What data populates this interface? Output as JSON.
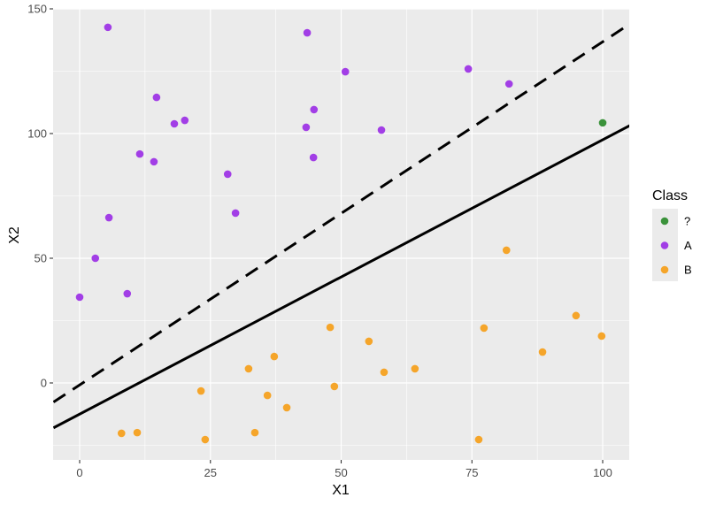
{
  "chart_data": {
    "type": "scatter",
    "title": "",
    "xlabel": "X1",
    "ylabel": "X2",
    "xlim": [
      -5,
      105
    ],
    "ylim": [
      -31,
      150
    ],
    "x_ticks": [
      0,
      25,
      50,
      75,
      100
    ],
    "y_ticks": [
      0,
      50,
      100,
      150
    ],
    "grid": true,
    "legend": {
      "title": "Class",
      "position": "right",
      "entries": [
        {
          "label": "?",
          "color": "#3a923a"
        },
        {
          "label": "A",
          "color": "#a23ee6"
        },
        {
          "label": "B",
          "color": "#f5a52a"
        }
      ]
    },
    "series": [
      {
        "name": "?",
        "color": "#3a923a",
        "points": [
          [
            100,
            104.3
          ]
        ]
      },
      {
        "name": "A",
        "color": "#a23ee6",
        "points": [
          [
            0,
            34.4
          ],
          [
            3,
            50
          ],
          [
            5.4,
            142.6
          ],
          [
            5.6,
            66.3
          ],
          [
            9.1,
            35.8
          ],
          [
            11.5,
            91.8
          ],
          [
            14.2,
            88.7
          ],
          [
            14.7,
            114.5
          ],
          [
            18.1,
            103.9
          ],
          [
            20.1,
            105.3
          ],
          [
            28.3,
            83.7
          ],
          [
            29.8,
            68.1
          ],
          [
            43.3,
            102.5
          ],
          [
            43.5,
            140.4
          ],
          [
            44.7,
            90.4
          ],
          [
            44.8,
            109.6
          ],
          [
            50.8,
            124.8
          ],
          [
            57.7,
            101.4
          ],
          [
            74.3,
            125.9
          ],
          [
            82.1,
            119.9
          ]
        ]
      },
      {
        "name": "B",
        "color": "#f5a52a",
        "points": [
          [
            8,
            -20.2
          ],
          [
            11,
            -19.9
          ],
          [
            23.2,
            -3.2
          ],
          [
            24,
            -22.7
          ],
          [
            32.3,
            5.7
          ],
          [
            33.5,
            -19.9
          ],
          [
            35.9,
            -5
          ],
          [
            37.2,
            10.6
          ],
          [
            39.6,
            -9.9
          ],
          [
            47.9,
            22.3
          ],
          [
            48.7,
            -1.4
          ],
          [
            55.3,
            16.7
          ],
          [
            58.2,
            4.3
          ],
          [
            64.1,
            5.7
          ],
          [
            76.3,
            -22.7
          ],
          [
            77.3,
            22
          ],
          [
            81.6,
            53.2
          ],
          [
            88.5,
            12.4
          ],
          [
            94.9,
            27
          ],
          [
            99.8,
            18.8
          ]
        ]
      }
    ],
    "lines": [
      {
        "name": "solid-boundary",
        "style": "solid",
        "color": "#000000",
        "intercept": -12.5,
        "slope": 1.1
      },
      {
        "name": "dashed-boundary",
        "style": "dashed",
        "color": "#000000",
        "intercept": -0.8,
        "slope": 1.376
      }
    ]
  }
}
